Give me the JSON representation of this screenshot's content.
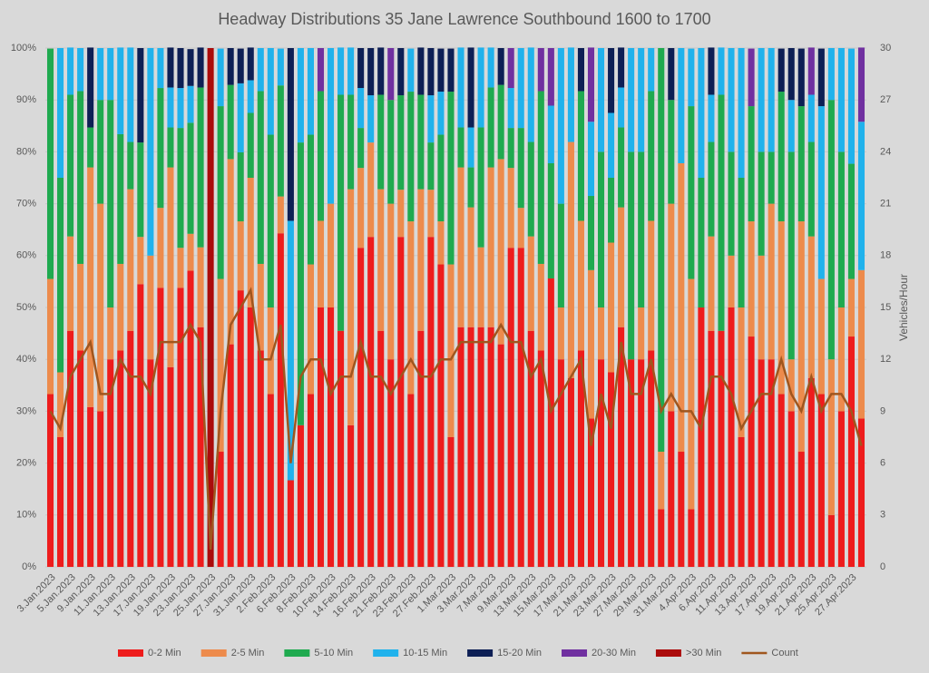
{
  "chart_data": {
    "type": "bar",
    "stacked": true,
    "title": "Headway Distributions 35 Jane  Lawrence Southbound 1600 to 1700",
    "y2label": "Vehicles/Hour",
    "categories": [
      "3.Jan.2023",
      null,
      "5.Jan.2023",
      null,
      "9.Jan.2023",
      null,
      "11.Jan.2023",
      null,
      "13.Jan.2023",
      null,
      "17.Jan.2023",
      null,
      "19.Jan.2023",
      null,
      "23.Jan.2023",
      null,
      "25.Jan.2023",
      null,
      "27.Jan.2023",
      null,
      "31.Jan.2023",
      null,
      "2.Feb.2023",
      null,
      "6.Feb.2023",
      null,
      "8.Feb.2023",
      null,
      "10.Feb.2023",
      null,
      "14.Feb.2023",
      null,
      "16.Feb.2023",
      null,
      "21.Feb.2023",
      null,
      "23.Feb.2023",
      null,
      "27.Feb.2023",
      null,
      "1.Mar.2023",
      null,
      "3.Mar.2023",
      null,
      "7.Mar.2023",
      null,
      "9.Mar.2023",
      null,
      "13.Mar.2023",
      null,
      "15.Mar.2023",
      null,
      "17.Mar.2023",
      null,
      "21.Mar.2023",
      null,
      "23.Mar.2023",
      null,
      "27.Mar.2023",
      null,
      "29.Mar.2023",
      null,
      "31.Mar.2023",
      null,
      "4.Apr.2023",
      null,
      "6.Apr.2023",
      null,
      "11.Apr.2023",
      null,
      "13.Apr.2023",
      null,
      "17.Apr.2023",
      null,
      "19.Apr.2023",
      null,
      "21.Apr.2023",
      null,
      "25.Apr.2023",
      null,
      "27.Apr.2023",
      null
    ],
    "series": [
      {
        "name": "0-2 Min",
        "color": "#ee1c1c",
        "values": [
          33.3,
          25,
          45.5,
          41.7,
          30.8,
          30,
          40,
          41.7,
          45.5,
          54.5,
          40,
          53.8,
          38.5,
          53.8,
          57.1,
          46.2,
          0,
          22.2,
          42.9,
          53.3,
          50,
          41.7,
          33.3,
          64.3,
          16.7,
          27.3,
          33.3,
          50,
          50,
          45.5,
          27.3,
          61.5,
          63.6,
          45.5,
          40,
          63.6,
          33.3,
          45.5,
          63.6,
          58.3,
          25,
          46.2,
          46.2,
          46.2,
          46.2,
          42.9,
          61.5,
          61.5,
          45.5,
          41.7,
          55.6,
          40,
          36.4,
          41.7,
          28.6,
          40,
          37.5,
          46.2,
          40,
          40,
          41.7,
          11.1,
          30,
          22.2,
          11.1,
          50,
          45.5,
          45.5,
          50,
          25,
          44.4,
          40,
          40,
          33.3,
          30,
          22.2,
          36.4,
          33.3,
          10,
          30,
          44.4,
          28.6
        ]
      },
      {
        "name": "2-5 Min",
        "color": "#ed8b4c",
        "values": [
          22.2,
          12.5,
          18.2,
          16.7,
          46.2,
          40,
          10,
          16.7,
          27.3,
          9.1,
          20,
          15.4,
          38.5,
          7.7,
          7.1,
          15.4,
          0,
          33.3,
          35.7,
          13.3,
          25,
          16.7,
          16.7,
          7.1,
          0,
          0,
          25,
          16.7,
          20,
          0,
          45.5,
          15.4,
          18.2,
          27.3,
          30,
          9.1,
          33.3,
          27.3,
          9.1,
          8.3,
          33.3,
          30.8,
          23.1,
          15.4,
          30.8,
          35.7,
          15.4,
          7.7,
          18.2,
          16.7,
          0,
          10,
          45.5,
          25,
          28.6,
          10,
          25,
          23.1,
          0,
          10,
          25,
          11.1,
          40,
          55.6,
          44.4,
          0,
          18.2,
          0,
          10,
          25,
          22.2,
          20,
          30,
          33.3,
          10,
          44.4,
          27.3,
          22.2,
          30,
          20,
          11.1,
          28.6
        ]
      },
      {
        "name": "5-10 Min",
        "color": "#1faa4f",
        "values": [
          44.4,
          37.5,
          27.3,
          33.3,
          7.7,
          20,
          40,
          25,
          9.1,
          18.2,
          0,
          23.1,
          7.7,
          23.1,
          21.4,
          30.8,
          0,
          33.3,
          14.3,
          13.3,
          12.5,
          33.3,
          33.3,
          21.4,
          0,
          54.5,
          25,
          25,
          0,
          45.5,
          18.2,
          7.7,
          0,
          18.2,
          20,
          18.2,
          25,
          18.2,
          9.1,
          16.7,
          33.3,
          7.7,
          7.7,
          23.1,
          15.4,
          14.3,
          7.7,
          15.4,
          18.2,
          33.3,
          22.2,
          20,
          0,
          25,
          14.3,
          30,
          12.5,
          15.4,
          40,
          30,
          25,
          77.8,
          20,
          0,
          33.3,
          25,
          18.2,
          45.5,
          20,
          25,
          22.2,
          20,
          10,
          25,
          40,
          22.2,
          18.2,
          0,
          50,
          30,
          22.2,
          0
        ]
      },
      {
        "name": "10-15 Min",
        "color": "#20b2ec",
        "values": [
          0,
          25,
          9.1,
          8.3,
          0,
          10,
          10,
          16.7,
          18.2,
          0,
          40,
          7.7,
          7.7,
          7.7,
          7.1,
          0,
          0,
          11.1,
          0,
          13.3,
          6.3,
          8.3,
          16.7,
          7.1,
          50,
          18.2,
          16.7,
          0,
          30,
          9.1,
          9.1,
          7.7,
          9.1,
          0,
          0,
          0,
          8.3,
          0,
          9.1,
          8.3,
          0,
          15.4,
          7.7,
          15.4,
          7.7,
          0,
          7.7,
          15.4,
          18.2,
          0,
          11.1,
          30,
          18.2,
          0,
          14.3,
          20,
          12.5,
          7.7,
          20,
          20,
          8.3,
          0,
          0,
          22.2,
          11.1,
          25,
          9.1,
          9.1,
          20,
          25,
          0,
          20,
          20,
          0,
          10,
          0,
          9.1,
          33.3,
          10,
          20,
          22.2,
          28.6
        ]
      },
      {
        "name": "15-20 Min",
        "color": "#0d1f55",
        "values": [
          0,
          0,
          0,
          0,
          15.4,
          0,
          0,
          0,
          0,
          18.2,
          0,
          0,
          7.7,
          7.7,
          7.1,
          7.7,
          0,
          0,
          7.1,
          6.7,
          6.3,
          0,
          0,
          0,
          33.3,
          0,
          0,
          0,
          0,
          0,
          0,
          7.7,
          9.1,
          9.1,
          0,
          9.1,
          0,
          9.1,
          9.1,
          8.3,
          8.3,
          0,
          15.4,
          0,
          0,
          7.1,
          0,
          0,
          0,
          0,
          0,
          0,
          0,
          8.3,
          0,
          0,
          12.5,
          7.7,
          0,
          0,
          0,
          0,
          10,
          0,
          0,
          0,
          9.1,
          0,
          0,
          0,
          0,
          0,
          0,
          8.3,
          10,
          11.1,
          0,
          11.1,
          0,
          0,
          0,
          0
        ]
      },
      {
        "name": "20-30 Min",
        "color": "#7030a0",
        "values": [
          0,
          0,
          0,
          0,
          0,
          0,
          0,
          0,
          0,
          0,
          0,
          0,
          0,
          0,
          0,
          0,
          0,
          0,
          0,
          0,
          0,
          0,
          0,
          0,
          0,
          0,
          0,
          8.3,
          0,
          0,
          0,
          0,
          0,
          0,
          10,
          0,
          0,
          0,
          0,
          0,
          0,
          0,
          0,
          0,
          0,
          0,
          7.7,
          0,
          0,
          8.3,
          11.1,
          0,
          0,
          0,
          14.3,
          0,
          0,
          0,
          0,
          0,
          0,
          0,
          0,
          0,
          0,
          0,
          0,
          0,
          0,
          0,
          11.1,
          0,
          0,
          0,
          0,
          0,
          9.1,
          0,
          0,
          0,
          0,
          14.3
        ]
      },
      {
        "name": ">30 Min",
        "color": "#ab0b0b",
        "values": [
          0,
          0,
          0,
          0,
          0,
          0,
          0,
          0,
          0,
          0,
          0,
          0,
          0,
          0,
          0,
          0,
          100,
          0,
          0,
          0,
          0,
          0,
          0,
          0,
          0,
          0,
          0,
          0,
          0,
          0,
          0,
          0,
          0,
          0,
          0,
          0,
          0,
          0,
          0,
          0,
          0,
          0,
          0,
          0,
          0,
          0,
          0,
          0,
          0,
          0,
          0,
          0,
          0,
          0,
          0,
          0,
          0,
          0,
          0,
          0,
          0,
          0,
          0,
          0,
          0,
          0,
          0,
          0,
          0,
          0,
          0,
          0,
          0,
          0,
          0,
          0,
          0,
          0,
          0,
          0,
          0,
          0
        ]
      },
      {
        "name": "Count",
        "type": "line",
        "axis": "y2",
        "color": "#a0561e",
        "values": [
          9,
          8,
          11,
          12,
          13,
          10,
          10,
          12,
          11,
          11,
          10,
          13,
          13,
          13,
          14,
          13,
          1,
          9,
          14,
          15,
          16,
          12,
          12,
          14,
          6,
          11,
          12,
          12,
          10,
          11,
          11,
          13,
          11,
          11,
          10,
          11,
          12,
          11,
          11,
          12,
          12,
          13,
          13,
          13,
          13,
          14,
          13,
          13,
          11,
          12,
          9,
          10,
          11,
          12,
          7,
          10,
          8,
          13,
          10,
          10,
          12,
          9,
          10,
          9,
          9,
          8,
          11,
          11,
          10,
          8,
          9,
          10,
          10,
          12,
          10,
          9,
          11,
          9,
          10,
          10,
          9,
          7
        ]
      }
    ],
    "ylim": [
      0,
      100
    ],
    "yticks": [
      {
        "value": 0,
        "label": "0%"
      },
      {
        "value": 10,
        "label": "10%"
      },
      {
        "value": 20,
        "label": "20%"
      },
      {
        "value": 30,
        "label": "30%"
      },
      {
        "value": 40,
        "label": "40%"
      },
      {
        "value": 50,
        "label": "50%"
      },
      {
        "value": 60,
        "label": "60%"
      },
      {
        "value": 70,
        "label": "70%"
      },
      {
        "value": 80,
        "label": "80%"
      },
      {
        "value": 90,
        "label": "90%"
      },
      {
        "value": 100,
        "label": "100%"
      }
    ],
    "y2lim": [
      0,
      30
    ],
    "y2ticks": [
      0,
      3,
      6,
      9,
      12,
      15,
      18,
      21,
      24,
      27,
      30
    ],
    "grid": true,
    "legend": "bottom"
  }
}
